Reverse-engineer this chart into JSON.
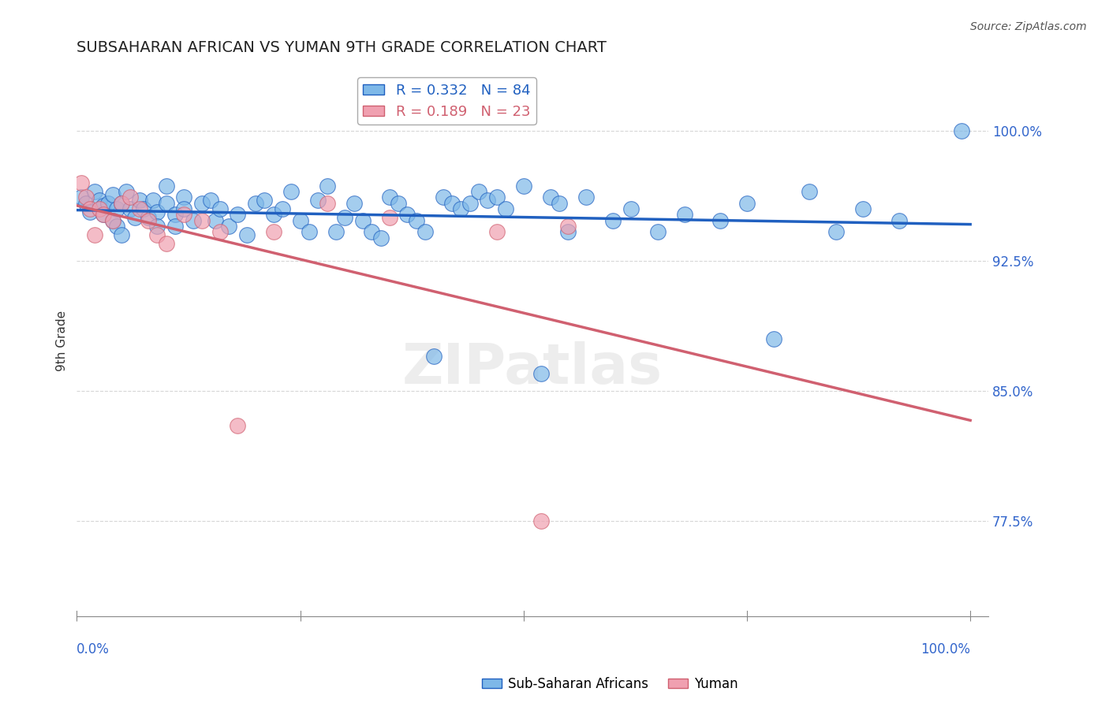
{
  "title": "SUBSAHARAN AFRICAN VS YUMAN 9TH GRADE CORRELATION CHART",
  "source": "Source: ZipAtlas.com",
  "ylabel": "9th Grade",
  "yticks": [
    0.775,
    0.85,
    0.925,
    1.0
  ],
  "ytick_labels": [
    "77.5%",
    "85.0%",
    "92.5%",
    "100.0%"
  ],
  "xlim": [
    0.0,
    1.02
  ],
  "ylim": [
    0.72,
    1.038
  ],
  "blue_R": 0.332,
  "blue_N": 84,
  "pink_R": 0.189,
  "pink_N": 23,
  "blue_color": "#7eb8e8",
  "pink_color": "#f0a0b0",
  "blue_line_color": "#2060c0",
  "pink_line_color": "#d06070",
  "legend_blue_label": "Sub-Saharan Africans",
  "legend_pink_label": "Yuman",
  "blue_x": [
    0.005,
    0.01,
    0.015,
    0.02,
    0.025,
    0.03,
    0.03,
    0.035,
    0.04,
    0.04,
    0.045,
    0.045,
    0.05,
    0.05,
    0.055,
    0.06,
    0.065,
    0.07,
    0.075,
    0.08,
    0.085,
    0.09,
    0.09,
    0.1,
    0.1,
    0.11,
    0.11,
    0.12,
    0.12,
    0.13,
    0.14,
    0.15,
    0.155,
    0.16,
    0.17,
    0.18,
    0.19,
    0.2,
    0.21,
    0.22,
    0.23,
    0.24,
    0.25,
    0.26,
    0.27,
    0.28,
    0.29,
    0.3,
    0.31,
    0.32,
    0.33,
    0.34,
    0.35,
    0.36,
    0.37,
    0.38,
    0.39,
    0.4,
    0.41,
    0.42,
    0.43,
    0.44,
    0.45,
    0.46,
    0.47,
    0.48,
    0.5,
    0.52,
    0.53,
    0.54,
    0.55,
    0.57,
    0.6,
    0.62,
    0.65,
    0.68,
    0.72,
    0.75,
    0.78,
    0.82,
    0.85,
    0.88,
    0.92,
    0.99
  ],
  "blue_y": [
    0.962,
    0.958,
    0.953,
    0.965,
    0.96,
    0.957,
    0.952,
    0.958,
    0.963,
    0.948,
    0.955,
    0.945,
    0.958,
    0.94,
    0.965,
    0.955,
    0.95,
    0.96,
    0.955,
    0.95,
    0.96,
    0.953,
    0.945,
    0.968,
    0.958,
    0.952,
    0.945,
    0.962,
    0.955,
    0.948,
    0.958,
    0.96,
    0.948,
    0.955,
    0.945,
    0.952,
    0.94,
    0.958,
    0.96,
    0.952,
    0.955,
    0.965,
    0.948,
    0.942,
    0.96,
    0.968,
    0.942,
    0.95,
    0.958,
    0.948,
    0.942,
    0.938,
    0.962,
    0.958,
    0.952,
    0.948,
    0.942,
    0.87,
    0.962,
    0.958,
    0.955,
    0.958,
    0.965,
    0.96,
    0.962,
    0.955,
    0.968,
    0.86,
    0.962,
    0.958,
    0.942,
    0.962,
    0.948,
    0.955,
    0.942,
    0.952,
    0.948,
    0.958,
    0.88,
    0.965,
    0.942,
    0.955,
    0.948,
    1.0
  ],
  "pink_x": [
    0.005,
    0.01,
    0.015,
    0.02,
    0.025,
    0.03,
    0.04,
    0.05,
    0.06,
    0.07,
    0.08,
    0.09,
    0.1,
    0.12,
    0.14,
    0.16,
    0.18,
    0.22,
    0.28,
    0.35,
    0.47,
    0.52,
    0.55
  ],
  "pink_y": [
    0.97,
    0.962,
    0.955,
    0.94,
    0.955,
    0.952,
    0.948,
    0.958,
    0.962,
    0.955,
    0.948,
    0.94,
    0.935,
    0.952,
    0.948,
    0.942,
    0.83,
    0.942,
    0.958,
    0.95,
    0.942,
    0.775,
    0.945
  ]
}
